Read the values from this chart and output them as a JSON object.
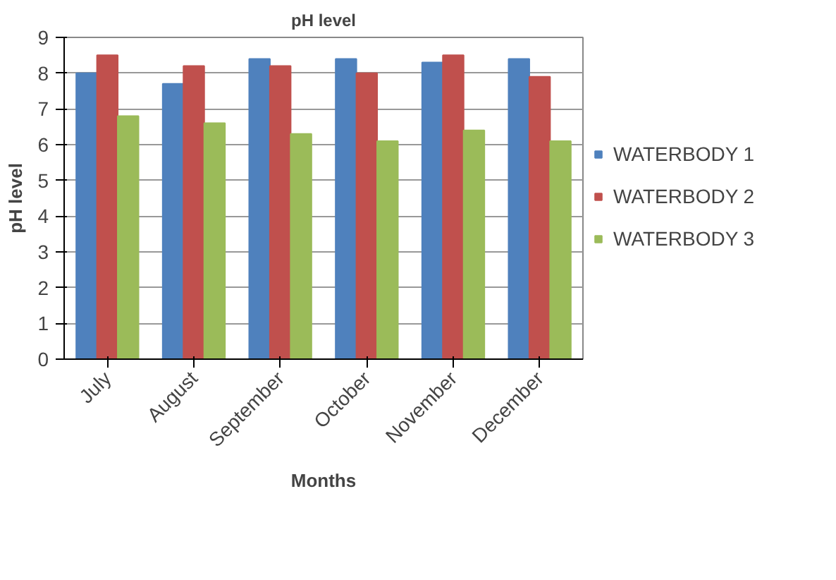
{
  "chart_data": {
    "type": "bar",
    "title": "pH level",
    "xlabel": "Months",
    "ylabel": "pH level",
    "categories": [
      "July",
      "August",
      "September",
      "October",
      "November",
      "December"
    ],
    "series": [
      {
        "name": "WATERBODY 1",
        "color": "#4f81bd",
        "values": [
          8.0,
          7.7,
          8.4,
          8.4,
          8.3,
          8.4
        ]
      },
      {
        "name": "WATERBODY 2",
        "color": "#c0504d",
        "values": [
          8.5,
          8.2,
          8.2,
          8.0,
          8.5,
          7.9
        ]
      },
      {
        "name": "WATERBODY 3",
        "color": "#9bbb59",
        "values": [
          6.8,
          6.6,
          6.3,
          6.1,
          6.4,
          6.1
        ]
      }
    ],
    "ylim": [
      0,
      9
    ],
    "yticks": [
      0,
      1,
      2,
      3,
      4,
      5,
      6,
      7,
      8,
      9
    ],
    "grid": "y",
    "legend": "right"
  }
}
